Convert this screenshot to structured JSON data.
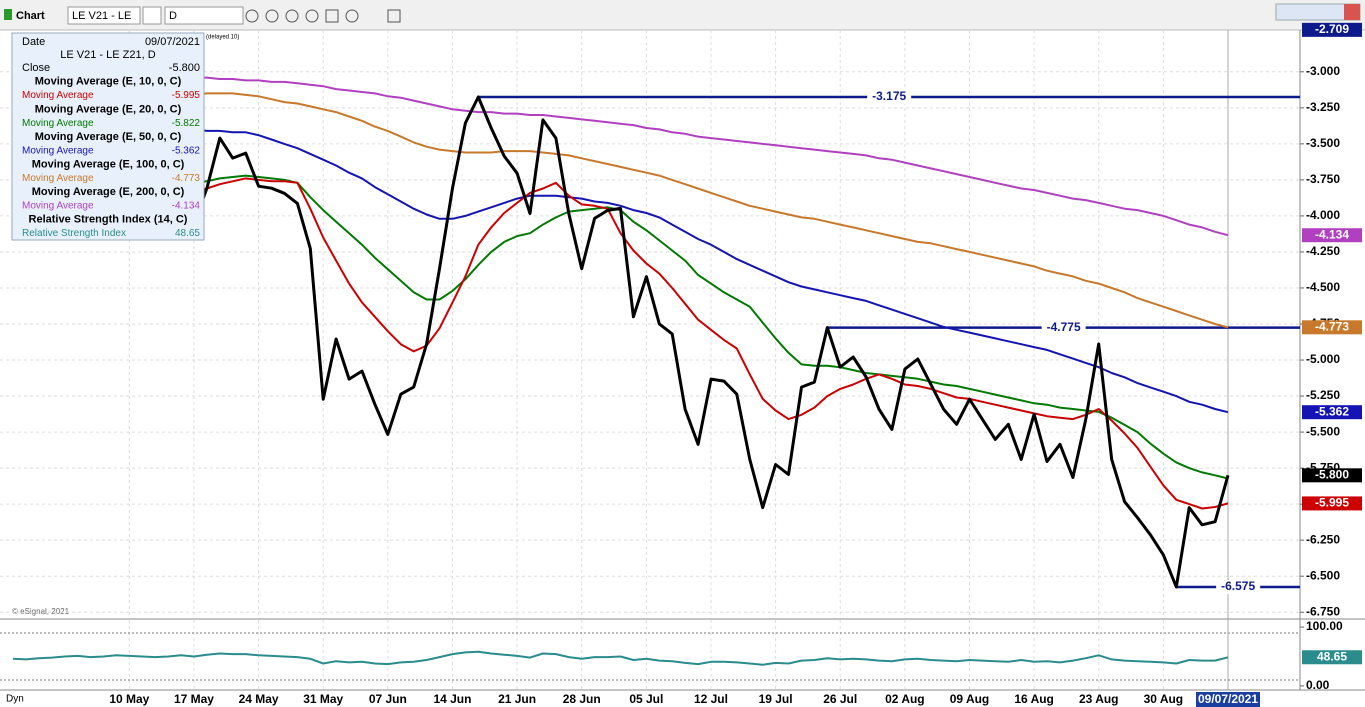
{
  "toolbar": {
    "title": "Chart",
    "symbol": "LE V21 - LE",
    "interval": "D",
    "footer": "Dyn"
  },
  "chart_data": [
    {
      "type": "line",
      "symbol": "LE V21 - LE Z21, D",
      "date_label": "Date",
      "date": "09/07/2021",
      "delayed": "(delayed 10)",
      "watermark": "© eSignal, 2021",
      "categories": [
        null,
        null,
        null,
        null,
        null,
        null,
        null,
        null,
        null,
        "10 May",
        null,
        null,
        null,
        null,
        "17 May",
        null,
        null,
        null,
        null,
        "24 May",
        null,
        null,
        null,
        null,
        "31 May",
        null,
        null,
        null,
        null,
        "07 Jun",
        null,
        null,
        null,
        null,
        "14 Jun",
        null,
        null,
        null,
        null,
        "21 Jun",
        null,
        null,
        null,
        null,
        "28 Jun",
        null,
        null,
        null,
        null,
        "05 Jul",
        null,
        null,
        null,
        null,
        "12 Jul",
        null,
        null,
        null,
        null,
        "19 Jul",
        null,
        null,
        null,
        null,
        "26 Jul",
        null,
        null,
        null,
        null,
        "02 Aug",
        null,
        null,
        null,
        null,
        "09 Aug",
        null,
        null,
        null,
        null,
        "16 Aug",
        null,
        null,
        null,
        null,
        "23 Aug",
        null,
        null,
        null,
        null,
        "30 Aug",
        null,
        null,
        null,
        null,
        "09/07/2021"
      ],
      "ylim": [
        -6.79,
        -2.71
      ],
      "yticks": [
        {
          "value": -3.0,
          "label": "-3.000"
        },
        {
          "value": -3.25,
          "label": "-3.250"
        },
        {
          "value": -3.5,
          "label": "-3.500"
        },
        {
          "value": -3.75,
          "label": "-3.750"
        },
        {
          "value": -4.0,
          "label": "-4.000"
        },
        {
          "value": -4.25,
          "label": "-4.250"
        },
        {
          "value": -4.5,
          "label": "-4.500"
        },
        {
          "value": -4.75,
          "label": "-4.750"
        },
        {
          "value": -5.0,
          "label": "-5.000"
        },
        {
          "value": -5.25,
          "label": "-5.250"
        },
        {
          "value": -5.5,
          "label": "-5.500"
        },
        {
          "value": -5.75,
          "label": "-5.750"
        },
        {
          "value": -6.0,
          "label": "-6.000"
        },
        {
          "value": -6.25,
          "label": "-6.250"
        },
        {
          "value": -6.5,
          "label": "-6.500"
        },
        {
          "value": -6.75,
          "label": "-6.750"
        }
      ],
      "grid": true,
      "top_label": {
        "value": -2.709,
        "label": "-2.709",
        "color": "#0d1a8c"
      },
      "annotations": [
        {
          "value": -3.175,
          "label": "-3.175",
          "from": 36
        },
        {
          "value": -4.775,
          "label": "-4.775",
          "from": 63
        },
        {
          "value": -6.575,
          "label": "-6.575",
          "from": 90
        }
      ],
      "series": [
        {
          "name": "Close",
          "color": "#000000",
          "width": 3,
          "axis_box": true,
          "last_label": "-5.800",
          "values": [
            null,
            null,
            null,
            null,
            null,
            null,
            null,
            null,
            null,
            null,
            null,
            null,
            null,
            null,
            -4.052,
            -3.808,
            -3.46,
            -3.599,
            -3.564,
            -3.794,
            -3.808,
            -3.843,
            -3.913,
            -4.226,
            -5.272,
            -4.854,
            -5.132,
            -5.077,
            -5.307,
            -5.516,
            -5.237,
            -5.188,
            -4.889,
            -4.366,
            -3.808,
            -3.355,
            -3.175,
            -3.39,
            -3.585,
            -3.704,
            -3.983,
            -3.334,
            -3.46,
            -3.983,
            -4.366,
            -4.017,
            -3.962,
            -3.948,
            -4.7,
            -4.422,
            -4.749,
            -4.819,
            -5.341,
            -5.585,
            -5.132,
            -5.146,
            -5.237,
            -5.69,
            -6.024,
            -5.725,
            -5.794,
            -5.188,
            -5.153,
            -4.775,
            -5.049,
            -4.979,
            -5.118,
            -5.341,
            -5.481,
            -5.063,
            -4.993,
            -5.167,
            -5.341,
            -5.446,
            -5.272,
            -5.411,
            -5.551,
            -5.446,
            -5.69,
            -5.376,
            -5.704,
            -5.585,
            -5.815,
            -5.411,
            -4.889,
            -5.69,
            -5.983,
            -6.094,
            -6.213,
            -6.352,
            -6.575,
            -6.024,
            -6.143,
            -6.122,
            -5.8
          ]
        },
        {
          "name": "Moving Average",
          "study": "Moving Average (E, 10, 0, C)",
          "color": "#cc0000",
          "width": 2,
          "axis_box": true,
          "last_label": "-5.995",
          "values": [
            null,
            null,
            null,
            null,
            null,
            null,
            null,
            null,
            null,
            null,
            null,
            null,
            null,
            null,
            -3.83,
            -3.81,
            -3.78,
            -3.76,
            -3.74,
            -3.75,
            -3.76,
            -3.76,
            -3.77,
            -3.95,
            -4.15,
            -4.31,
            -4.47,
            -4.6,
            -4.7,
            -4.8,
            -4.89,
            -4.94,
            -4.9,
            -4.78,
            -4.6,
            -4.42,
            -4.2,
            -4.08,
            -3.98,
            -3.91,
            -3.84,
            -3.81,
            -3.77,
            -3.86,
            -3.92,
            -3.93,
            -3.95,
            -4.12,
            -4.24,
            -4.33,
            -4.4,
            -4.5,
            -4.61,
            -4.72,
            -4.79,
            -4.86,
            -4.92,
            -5.1,
            -5.27,
            -5.35,
            -5.41,
            -5.38,
            -5.33,
            -5.25,
            -5.2,
            -5.17,
            -5.13,
            -5.1,
            -5.13,
            -5.17,
            -5.18,
            -5.2,
            -5.23,
            -5.26,
            -5.27,
            -5.29,
            -5.31,
            -5.33,
            -5.35,
            -5.37,
            -5.39,
            -5.4,
            -5.41,
            -5.38,
            -5.34,
            -5.42,
            -5.51,
            -5.61,
            -5.74,
            -5.87,
            -5.97,
            -6.0,
            -6.03,
            -6.02,
            -5.995
          ]
        },
        {
          "name": "Moving Average",
          "study": "Moving Average (E, 20, 0, C)",
          "color": "#007a00",
          "width": 2,
          "axis_box": false,
          "last_label": "-5.822",
          "values": [
            null,
            null,
            null,
            null,
            null,
            null,
            null,
            null,
            null,
            null,
            null,
            null,
            null,
            null,
            -3.77,
            -3.76,
            -3.74,
            -3.73,
            -3.72,
            -3.73,
            -3.74,
            -3.75,
            -3.77,
            -3.87,
            -3.96,
            -4.04,
            -4.12,
            -4.2,
            -4.29,
            -4.37,
            -4.45,
            -4.53,
            -4.58,
            -4.58,
            -4.52,
            -4.44,
            -4.34,
            -4.25,
            -4.18,
            -4.14,
            -4.12,
            -4.06,
            -4.01,
            -3.97,
            -3.96,
            -3.95,
            -3.94,
            -3.96,
            -4.04,
            -4.1,
            -4.17,
            -4.24,
            -4.31,
            -4.41,
            -4.47,
            -4.53,
            -4.58,
            -4.63,
            -4.74,
            -4.85,
            -4.95,
            -5.03,
            -5.04,
            -5.04,
            -5.05,
            -5.07,
            -5.09,
            -5.1,
            -5.11,
            -5.12,
            -5.13,
            -5.15,
            -5.17,
            -5.18,
            -5.2,
            -5.22,
            -5.24,
            -5.26,
            -5.28,
            -5.3,
            -5.31,
            -5.33,
            -5.34,
            -5.35,
            -5.36,
            -5.4,
            -5.45,
            -5.5,
            -5.58,
            -5.65,
            -5.71,
            -5.75,
            -5.78,
            -5.8,
            -5.822
          ]
        },
        {
          "name": "Moving Average",
          "study": "Moving Average (E, 50, 0, C)",
          "color": "#1414b4",
          "width": 2,
          "axis_box": true,
          "last_label": "-5.362",
          "values": [
            null,
            null,
            null,
            null,
            null,
            null,
            null,
            null,
            null,
            null,
            null,
            null,
            null,
            null,
            -3.4,
            -3.41,
            -3.41,
            -3.42,
            -3.42,
            -3.44,
            -3.47,
            -3.5,
            -3.53,
            -3.57,
            -3.61,
            -3.65,
            -3.7,
            -3.74,
            -3.8,
            -3.85,
            -3.9,
            -3.95,
            -3.99,
            -4.02,
            -4.02,
            -4.0,
            -3.97,
            -3.94,
            -3.91,
            -3.88,
            -3.86,
            -3.86,
            -3.86,
            -3.87,
            -3.88,
            -3.9,
            -3.91,
            -3.93,
            -3.96,
            -3.98,
            -4.01,
            -4.06,
            -4.11,
            -4.16,
            -4.2,
            -4.25,
            -4.3,
            -4.34,
            -4.38,
            -4.42,
            -4.46,
            -4.49,
            -4.51,
            -4.53,
            -4.55,
            -4.57,
            -4.59,
            -4.62,
            -4.65,
            -4.68,
            -4.71,
            -4.74,
            -4.77,
            -4.79,
            -4.81,
            -4.83,
            -4.85,
            -4.87,
            -4.89,
            -4.91,
            -4.93,
            -4.96,
            -4.99,
            -5.02,
            -5.05,
            -5.09,
            -5.12,
            -5.16,
            -5.19,
            -5.22,
            -5.25,
            -5.29,
            -5.31,
            -5.34,
            -5.362
          ]
        },
        {
          "name": "Moving Average",
          "study": "Moving Average (E, 100, 0, C)",
          "color": "#c8782a",
          "width": 2,
          "axis_box": true,
          "last_label": "-4.773",
          "values": [
            null,
            null,
            null,
            null,
            null,
            null,
            null,
            null,
            null,
            null,
            null,
            null,
            null,
            null,
            -3.16,
            -3.15,
            -3.15,
            -3.15,
            -3.16,
            -3.17,
            -3.19,
            -3.21,
            -3.22,
            -3.24,
            -3.26,
            -3.28,
            -3.31,
            -3.34,
            -3.38,
            -3.41,
            -3.45,
            -3.49,
            -3.52,
            -3.54,
            -3.55,
            -3.56,
            -3.56,
            -3.56,
            -3.55,
            -3.55,
            -3.55,
            -3.56,
            -3.57,
            -3.58,
            -3.6,
            -3.62,
            -3.64,
            -3.66,
            -3.68,
            -3.7,
            -3.72,
            -3.75,
            -3.78,
            -3.81,
            -3.84,
            -3.87,
            -3.9,
            -3.93,
            -3.95,
            -3.97,
            -3.99,
            -4.01,
            -4.02,
            -4.04,
            -4.06,
            -4.08,
            -4.1,
            -4.12,
            -4.14,
            -4.16,
            -4.18,
            -4.19,
            -4.21,
            -4.23,
            -4.25,
            -4.27,
            -4.29,
            -4.31,
            -4.33,
            -4.35,
            -4.38,
            -4.4,
            -4.42,
            -4.45,
            -4.47,
            -4.5,
            -4.53,
            -4.57,
            -4.6,
            -4.63,
            -4.66,
            -4.69,
            -4.72,
            -4.75,
            -4.773
          ]
        },
        {
          "name": "Moving Average",
          "study": "Moving Average (E, 200, 0, C)",
          "color": "#b040c0",
          "width": 2,
          "axis_box": true,
          "last_label": "-4.134",
          "values": [
            null,
            null,
            null,
            null,
            null,
            null,
            null,
            null,
            null,
            null,
            null,
            null,
            null,
            null,
            -3.04,
            -3.04,
            -3.05,
            -3.05,
            -3.06,
            -3.06,
            -3.07,
            -3.07,
            -3.08,
            -3.09,
            -3.1,
            -3.12,
            -3.13,
            -3.14,
            -3.15,
            -3.17,
            -3.18,
            -3.2,
            -3.22,
            -3.24,
            -3.26,
            -3.27,
            -3.28,
            -3.28,
            -3.29,
            -3.29,
            -3.3,
            -3.3,
            -3.31,
            -3.32,
            -3.33,
            -3.34,
            -3.35,
            -3.36,
            -3.37,
            -3.39,
            -3.4,
            -3.42,
            -3.43,
            -3.45,
            -3.46,
            -3.47,
            -3.48,
            -3.49,
            -3.5,
            -3.51,
            -3.52,
            -3.53,
            -3.54,
            -3.55,
            -3.56,
            -3.57,
            -3.58,
            -3.6,
            -3.61,
            -3.63,
            -3.65,
            -3.67,
            -3.69,
            -3.71,
            -3.73,
            -3.75,
            -3.77,
            -3.79,
            -3.81,
            -3.82,
            -3.84,
            -3.86,
            -3.88,
            -3.89,
            -3.91,
            -3.93,
            -3.95,
            -3.96,
            -3.98,
            -4.0,
            -4.03,
            -4.06,
            -4.08,
            -4.11,
            -4.134
          ]
        }
      ]
    },
    {
      "type": "line",
      "ylim": [
        -7,
        112
      ],
      "yticks": [
        {
          "value": 100,
          "label": "100.00"
        },
        {
          "value": 0,
          "label": "0.00"
        }
      ],
      "levels": [
        90,
        10
      ],
      "series": [
        {
          "name": "Relative Strength Index",
          "study": "Relative Strength Index (14, C)",
          "color": "#2a8c8c",
          "width": 2,
          "axis_box": true,
          "last_label": "48.65",
          "values": [
            46,
            45,
            47,
            48,
            50,
            51,
            49,
            50,
            52,
            51,
            50,
            49,
            50,
            52,
            50,
            53,
            55,
            54,
            54,
            52,
            51,
            50,
            49,
            46,
            38,
            42,
            40,
            41,
            38,
            37,
            40,
            41,
            44,
            49,
            54,
            57,
            58,
            55,
            53,
            51,
            48,
            55,
            54,
            49,
            46,
            49,
            49,
            50,
            44,
            46,
            43,
            42,
            39,
            37,
            41,
            41,
            40,
            38,
            36,
            39,
            38,
            43,
            44,
            47,
            45,
            46,
            45,
            43,
            42,
            45,
            46,
            44,
            43,
            42,
            44,
            43,
            42,
            41,
            44,
            41,
            42,
            40,
            43,
            47,
            52,
            45,
            43,
            42,
            41,
            40,
            38,
            44,
            43,
            43,
            48.65
          ]
        }
      ]
    }
  ]
}
